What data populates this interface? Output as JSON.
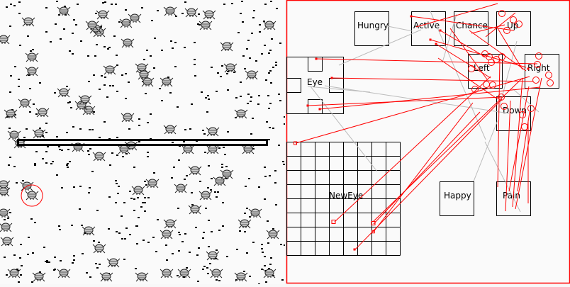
{
  "world": {
    "selected_creature_marker_color": "#ff0000",
    "creature_icon": "bug-icon",
    "food_icon": "food-dot-icon"
  },
  "brain": {
    "border_color": "#ff0000",
    "connection_excitatory_color": "#ff0000",
    "connection_other_color": "#bbbbbb",
    "nodes": {
      "hungry": "Hungry",
      "active": "Active",
      "chance": "Chance",
      "up": "Up",
      "left": "Left",
      "right": "Right",
      "eye": "Eye",
      "down": "Down",
      "neweye": "NewEye",
      "happy": "Happy",
      "pain": "Pain"
    }
  }
}
